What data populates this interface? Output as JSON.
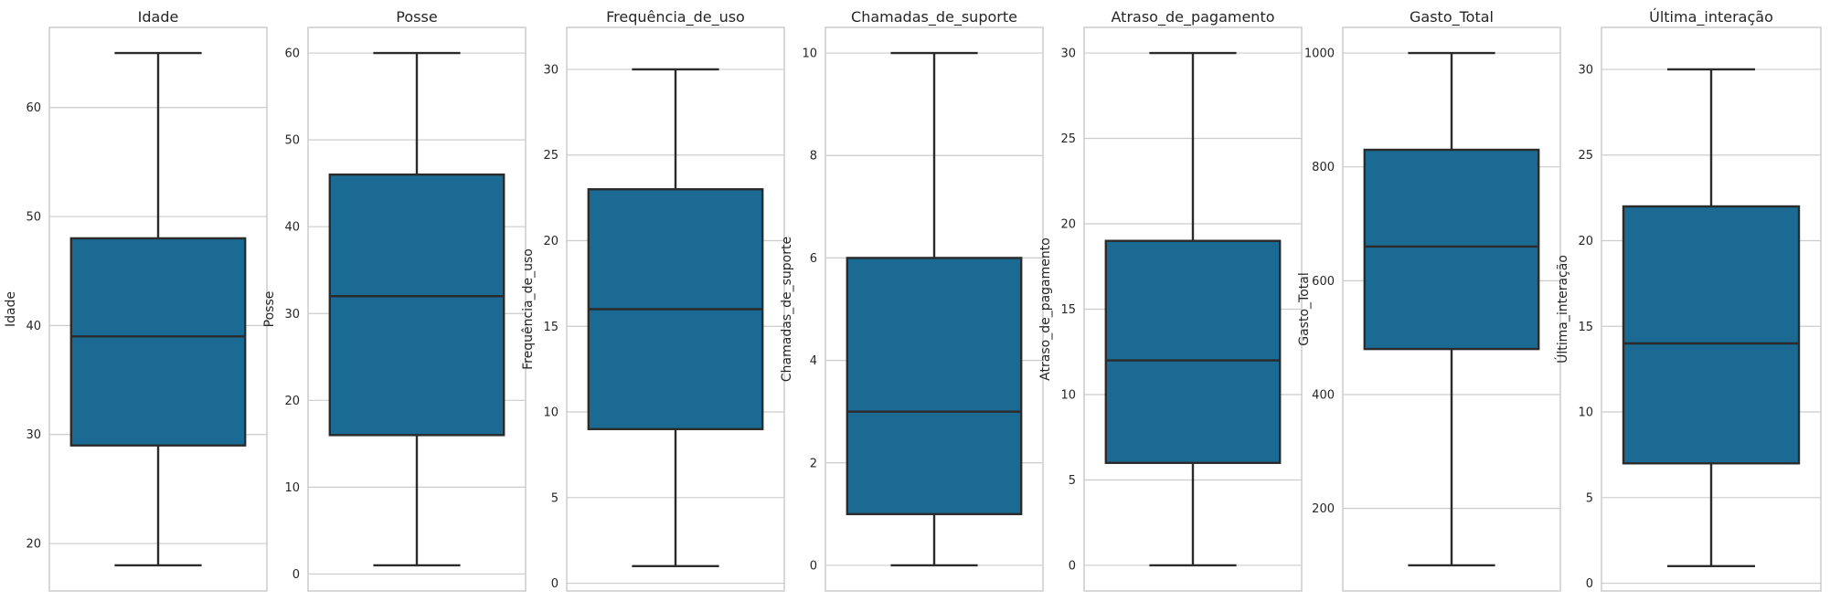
{
  "chart_data": [
    {
      "type": "box",
      "title": "Idade",
      "ylabel": "Idade",
      "ylim": [
        15.65,
        67.35
      ],
      "yticks": [
        20,
        30,
        40,
        50,
        60
      ],
      "box": {
        "whisker_low": 18,
        "q1": 29,
        "median": 39,
        "q3": 48,
        "whisker_high": 65
      },
      "grid": true
    },
    {
      "type": "box",
      "title": "Posse",
      "ylabel": "Posse",
      "ylim": [
        -1.95,
        62.95
      ],
      "yticks": [
        0,
        10,
        20,
        30,
        40,
        50,
        60
      ],
      "box": {
        "whisker_low": 1,
        "q1": 16,
        "median": 32,
        "q3": 46,
        "whisker_high": 60
      },
      "grid": true
    },
    {
      "type": "box",
      "title": "Frequência_de_uso",
      "ylabel": "Frequência_de_uso",
      "ylim": [
        -0.45,
        32.45
      ],
      "yticks": [
        0,
        5,
        10,
        15,
        20,
        25,
        30
      ],
      "box": {
        "whisker_low": 1,
        "q1": 9,
        "median": 16,
        "q3": 23,
        "whisker_high": 30
      },
      "grid": true
    },
    {
      "type": "box",
      "title": "Chamadas_de_suporte",
      "ylabel": "Chamadas_de_suporte",
      "ylim": [
        -0.5,
        10.5
      ],
      "yticks": [
        0,
        2,
        4,
        6,
        8,
        10
      ],
      "box": {
        "whisker_low": 0,
        "q1": 1,
        "median": 3,
        "q3": 6,
        "whisker_high": 10
      },
      "grid": true
    },
    {
      "type": "box",
      "title": "Atraso_de_pagamento",
      "ylabel": "Atraso_de_pagamento",
      "ylim": [
        -1.5,
        31.5
      ],
      "yticks": [
        0,
        5,
        10,
        15,
        20,
        25,
        30
      ],
      "box": {
        "whisker_low": 0,
        "q1": 6,
        "median": 12,
        "q3": 19,
        "whisker_high": 30
      },
      "grid": true
    },
    {
      "type": "box",
      "title": "Gasto_Total",
      "ylabel": "Gasto_Total",
      "ylim": [
        55,
        1045
      ],
      "yticks": [
        200,
        400,
        600,
        800,
        1000
      ],
      "box": {
        "whisker_low": 100,
        "q1": 480,
        "median": 660,
        "q3": 830,
        "whisker_high": 1000
      },
      "grid": true
    },
    {
      "type": "box",
      "title": "Última_interação",
      "ylabel": "Última_interação",
      "ylim": [
        -0.45,
        32.45
      ],
      "yticks": [
        0,
        5,
        10,
        15,
        20,
        25,
        30
      ],
      "box": {
        "whisker_low": 1,
        "q1": 7,
        "median": 14,
        "q3": 22,
        "whisker_high": 30
      },
      "grid": true
    }
  ],
  "colors": {
    "box_fill": "#1a6a93",
    "line": "#2b2b2b",
    "grid": "#cccccc",
    "spine": "#cccccc",
    "text": "#262626",
    "background": "#ffffff"
  }
}
